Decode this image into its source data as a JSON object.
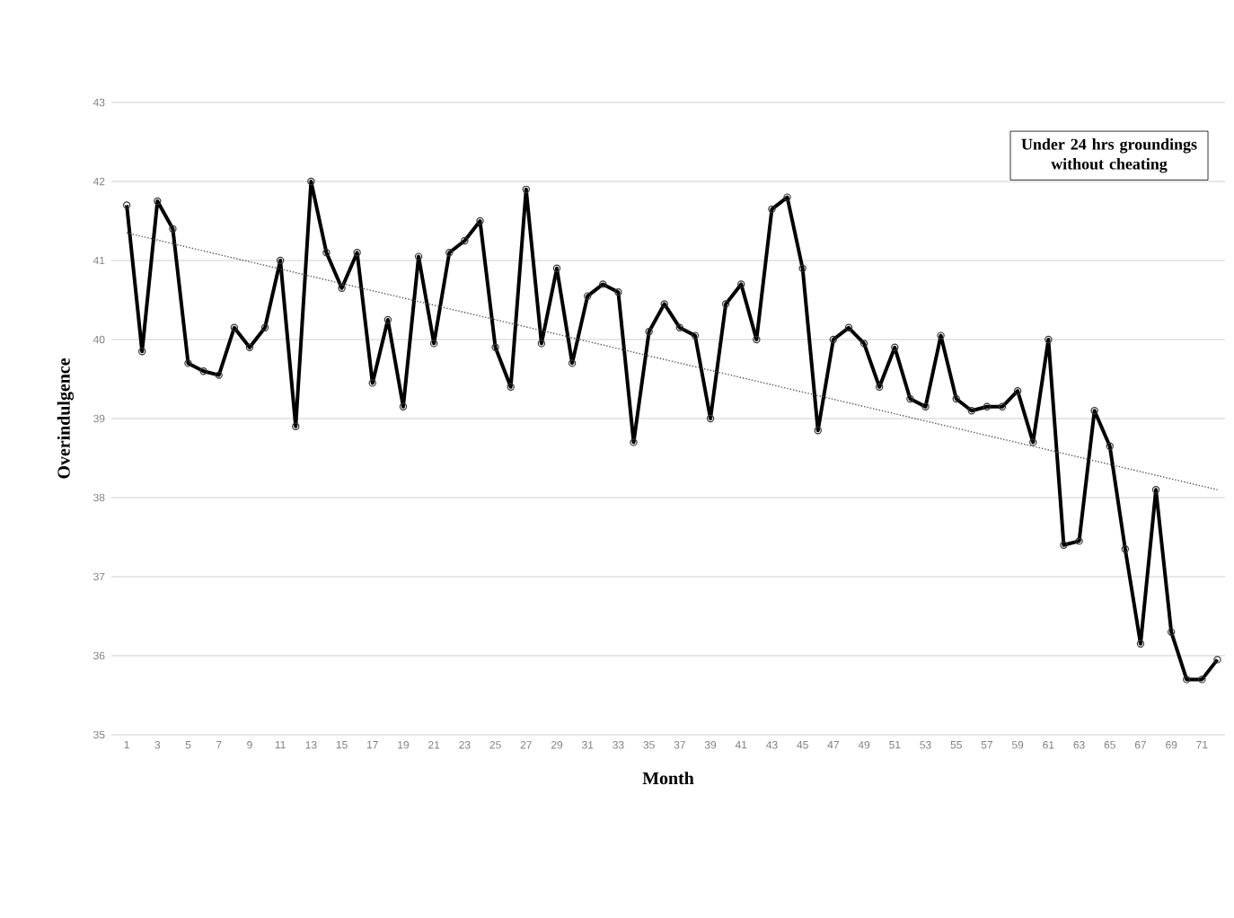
{
  "chart_data": {
    "type": "line",
    "xlabel": "Month",
    "ylabel": "Overindulgence",
    "annotations": [
      "Under 24 hrs groundings without cheating"
    ],
    "x": [
      1,
      2,
      3,
      4,
      5,
      6,
      7,
      8,
      9,
      10,
      11,
      12,
      13,
      14,
      15,
      16,
      17,
      18,
      19,
      20,
      21,
      22,
      23,
      24,
      25,
      26,
      27,
      28,
      29,
      30,
      31,
      32,
      33,
      34,
      35,
      36,
      37,
      38,
      39,
      40,
      41,
      42,
      43,
      44,
      45,
      46,
      47,
      48,
      49,
      50,
      51,
      52,
      53,
      54,
      55,
      56,
      57,
      58,
      59,
      60,
      61,
      62,
      63,
      64,
      65,
      66,
      67,
      68,
      69,
      70,
      71,
      72
    ],
    "series": [
      {
        "color": "#000000",
        "marker": "circle",
        "line_style": "solid",
        "values": [
          41.7,
          39.85,
          41.75,
          41.4,
          39.7,
          39.6,
          39.55,
          40.15,
          39.9,
          40.15,
          41.0,
          38.9,
          42.0,
          41.1,
          40.65,
          41.1,
          39.45,
          40.25,
          39.15,
          41.05,
          39.95,
          41.1,
          41.25,
          41.5,
          39.9,
          39.4,
          41.9,
          39.95,
          40.9,
          39.7,
          40.55,
          40.7,
          40.6,
          38.7,
          40.1,
          40.45,
          40.15,
          40.05,
          39.0,
          40.45,
          40.7,
          40.0,
          41.65,
          41.8,
          40.9,
          38.85,
          40.0,
          40.15,
          39.95,
          39.4,
          39.9,
          39.25,
          39.15,
          40.05,
          39.25,
          39.1,
          39.15,
          39.15,
          39.35,
          38.7,
          40.0,
          37.4,
          37.45,
          39.1,
          38.65,
          37.35,
          36.15,
          38.1,
          36.3,
          35.7,
          35.7,
          35.95
        ]
      },
      {
        "color": "#555555",
        "marker": "none",
        "line_style": "dotted",
        "x": [
          1,
          72
        ],
        "values": [
          41.35,
          38.1
        ]
      }
    ],
    "xlim": [
      0,
      72.5
    ],
    "xticks": [
      1,
      3,
      5,
      7,
      9,
      11,
      13,
      15,
      17,
      19,
      21,
      23,
      25,
      27,
      29,
      31,
      33,
      35,
      37,
      39,
      41,
      43,
      45,
      47,
      49,
      51,
      53,
      55,
      57,
      59,
      61,
      63,
      65,
      67,
      69,
      71
    ],
    "ylim": [
      35,
      43
    ],
    "yticks": [
      35,
      36,
      37,
      38,
      39,
      40,
      41,
      42,
      43
    ],
    "grid": "y"
  }
}
